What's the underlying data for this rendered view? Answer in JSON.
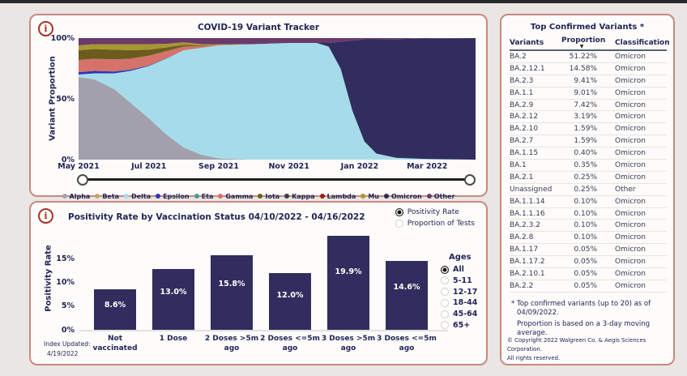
{
  "page": {
    "background": "#e9e6e3",
    "topbar_color": "#2a2a2a"
  },
  "colors": {
    "panel_border": "#c8897e",
    "panel_bg": "#fdfcfb",
    "text_navy": "#232456",
    "info_icon": "#a93226",
    "bar": "#312d5e"
  },
  "variant_panel": {
    "info_icon_glyph": "i",
    "title": "COVID-19 Variant Tracker"
  },
  "positivity_panel": {
    "info_icon_glyph": "i",
    "title": "Positivity Rate by Vaccination Status 04/10/2022 - 04/16/2022",
    "view_options": {
      "options": [
        "Positivity Rate",
        "Proportion of Tests"
      ],
      "selected": 0
    },
    "ages": {
      "label": "Ages",
      "options": [
        "All",
        "5-11",
        "12-17",
        "18-44",
        "45-64",
        "65+"
      ],
      "selected": 0
    },
    "index_updated": {
      "label": "Index Updated:",
      "date": "4/19/2022"
    }
  },
  "chart_data": [
    {
      "type": "area",
      "title": "COVID-19 Variant Tracker",
      "ylabel": "Variant Proportion",
      "ylim": [
        0,
        100
      ],
      "stacked": true,
      "grid": false,
      "legend_position": "bottom",
      "yticks": [
        {
          "label": "0%",
          "value": 0
        },
        {
          "label": "50%",
          "value": 50
        },
        {
          "label": "100%",
          "value": 100
        }
      ],
      "xticks": [
        {
          "label": "May 2021",
          "pos": 0.0
        },
        {
          "label": "Jul 2021",
          "pos": 0.177
        },
        {
          "label": "Sep 2021",
          "pos": 0.353
        },
        {
          "label": "Nov 2021",
          "pos": 0.53
        },
        {
          "label": "Jan 2022",
          "pos": 0.708
        },
        {
          "label": "Mar 2022",
          "pos": 0.878
        }
      ],
      "x": [
        0,
        0.04,
        0.09,
        0.13,
        0.177,
        0.22,
        0.265,
        0.31,
        0.354,
        0.44,
        0.53,
        0.6,
        0.63,
        0.66,
        0.69,
        0.72,
        0.75,
        0.8,
        0.885,
        1.0
      ],
      "series": [
        {
          "name": "Alpha",
          "color": "#a3a0ae",
          "values": [
            68,
            66,
            58,
            47,
            34,
            21,
            10,
            4,
            1,
            0,
            0,
            0,
            0,
            0,
            0,
            0,
            0,
            0,
            0,
            0
          ]
        },
        {
          "name": "Delta",
          "color": "#a6dcea",
          "values": [
            2,
            5,
            13,
            26,
            43,
            62,
            80,
            88,
            93,
            95,
            96,
            96,
            93,
            75,
            40,
            15,
            5,
            1.5,
            0.5,
            0
          ]
        },
        {
          "name": "Epsilon",
          "color": "#2b35b4",
          "values": [
            2,
            2,
            1.5,
            1,
            0.5,
            0.3,
            0,
            0,
            0,
            0,
            0,
            0,
            0,
            0,
            0,
            0,
            0,
            0,
            0,
            0
          ]
        },
        {
          "name": "Gamma",
          "color": "#d5736a",
          "values": [
            10,
            10,
            10,
            9,
            8,
            6,
            3,
            1.5,
            0.5,
            0,
            0,
            0,
            0,
            0,
            0,
            0,
            0,
            0,
            0,
            0
          ]
        },
        {
          "name": "Iota",
          "color": "#6b5c1e",
          "values": [
            8,
            8,
            8,
            7,
            5,
            3,
            1.5,
            0.5,
            0,
            0,
            0,
            0,
            0,
            0,
            0,
            0,
            0,
            0,
            0,
            0
          ]
        },
        {
          "name": "Mu",
          "color": "#a79732",
          "values": [
            4,
            4,
            4.5,
            5,
            4.5,
            3,
            2,
            1,
            0.5,
            0,
            0,
            0,
            0,
            0,
            0,
            0,
            0,
            0,
            0,
            0
          ]
        },
        {
          "name": "Beta",
          "color": "#c0ab62",
          "values": [
            0,
            0,
            0,
            0,
            0,
            0,
            0,
            0,
            0,
            0,
            0,
            0,
            0,
            0,
            0,
            0,
            0,
            0,
            0,
            0
          ]
        },
        {
          "name": "Eta",
          "color": "#44a08e",
          "values": [
            0,
            0,
            0,
            0,
            0,
            0,
            0,
            0,
            0,
            0,
            0,
            0,
            0,
            0,
            0,
            0,
            0,
            0,
            0,
            0
          ]
        },
        {
          "name": "Kappa",
          "color": "#3b3b41",
          "values": [
            0,
            0,
            0,
            0,
            0,
            0,
            0,
            0,
            0,
            0,
            0,
            0,
            0,
            0,
            0,
            0,
            0,
            0,
            0,
            0
          ]
        },
        {
          "name": "Lambda",
          "color": "#9c1f1a",
          "values": [
            0,
            0,
            0,
            0,
            0,
            0,
            0,
            0,
            0,
            0,
            0,
            0,
            0,
            0,
            0,
            0,
            0,
            0,
            0,
            0
          ]
        },
        {
          "name": "Omicron",
          "color": "#312d5e",
          "values": [
            0,
            0,
            0,
            0,
            0,
            0,
            0,
            0,
            0,
            0,
            0,
            0,
            3,
            22,
            58,
            84,
            94,
            97.7,
            99.2,
            100
          ]
        },
        {
          "name": "Other",
          "color": "#6a3a6c",
          "values": [
            6,
            5,
            5,
            5,
            5,
            4.7,
            3.5,
            5,
            5,
            5,
            4,
            4,
            4,
            3,
            2,
            1,
            1,
            0.8,
            0.3,
            0
          ]
        }
      ],
      "legend": [
        {
          "label": "Alpha",
          "color": "#a3a0ae"
        },
        {
          "label": "Beta",
          "color": "#c0ab62"
        },
        {
          "label": "Delta",
          "color": "#a6dcea"
        },
        {
          "label": "Epsilon",
          "color": "#2b35b4"
        },
        {
          "label": "Eta",
          "color": "#44a08e"
        },
        {
          "label": "Gamma",
          "color": "#d5736a"
        },
        {
          "label": "Iota",
          "color": "#6b5c1e"
        },
        {
          "label": "Kappa",
          "color": "#3b3b41"
        },
        {
          "label": "Lambda",
          "color": "#9c1f1a"
        },
        {
          "label": "Mu",
          "color": "#a79732"
        },
        {
          "label": "Omicron",
          "color": "#2b2850"
        },
        {
          "label": "Other",
          "color": "#6a3a6c"
        }
      ]
    },
    {
      "type": "bar",
      "title": "Positivity Rate by Vaccination Status 04/10/2022 - 04/16/2022",
      "ylabel": "Positivity Rate",
      "categories": [
        "Not vaccinated",
        "1 Dose",
        "2 Doses >5m ago",
        "2 Doses <=5m ago",
        "3 Doses >5m ago",
        "3 Doses <=5m ago"
      ],
      "values": [
        8.6,
        13.0,
        15.8,
        12.0,
        19.9,
        14.6
      ],
      "labels": [
        "8.6%",
        "13.0%",
        "15.8%",
        "12.0%",
        "19.9%",
        "14.6%"
      ],
      "ylim": [
        0,
        21
      ],
      "yticks": [
        {
          "label": "0%",
          "value": 0
        },
        {
          "label": "5%",
          "value": 5
        },
        {
          "label": "10%",
          "value": 10
        },
        {
          "label": "15%",
          "value": 15
        }
      ],
      "bar_color": "#312d5e",
      "grid": false
    }
  ],
  "variants_table": {
    "title": "Top Confirmed Variants *",
    "columns": [
      "Variants",
      "Proportion",
      "Classification"
    ],
    "sort": {
      "column": "Proportion",
      "direction": "desc",
      "icon": "▼"
    },
    "rows": [
      [
        "BA.2",
        "51.22%",
        "Omicron"
      ],
      [
        "BA.2.12.1",
        "14.58%",
        "Omicron"
      ],
      [
        "BA.2.3",
        "9.41%",
        "Omicron"
      ],
      [
        "BA.1.1",
        "9.01%",
        "Omicron"
      ],
      [
        "BA.2.9",
        "7.42%",
        "Omicron"
      ],
      [
        "BA.2.12",
        "3.19%",
        "Omicron"
      ],
      [
        "BA.2.10",
        "1.59%",
        "Omicron"
      ],
      [
        "BA.2.7",
        "1.59%",
        "Omicron"
      ],
      [
        "BA.1.15",
        "0.40%",
        "Omicron"
      ],
      [
        "BA.1",
        "0.35%",
        "Omicron"
      ],
      [
        "BA.2.1",
        "0.25%",
        "Omicron"
      ],
      [
        "Unassigned",
        "0.25%",
        "Other"
      ],
      [
        "BA.1.1.14",
        "0.10%",
        "Omicron"
      ],
      [
        "BA.1.1.16",
        "0.10%",
        "Omicron"
      ],
      [
        "BA.2.3.2",
        "0.10%",
        "Omicron"
      ],
      [
        "BA.2.8",
        "0.10%",
        "Omicron"
      ],
      [
        "BA.1.17",
        "0.05%",
        "Omicron"
      ],
      [
        "BA.1.17.2",
        "0.05%",
        "Omicron"
      ],
      [
        "BA.2.10.1",
        "0.05%",
        "Omicron"
      ],
      [
        "BA.2.2",
        "0.05%",
        "Omicron"
      ]
    ],
    "footnotes": [
      "* Top confirmed variants (up to 20) as of 04/09/2022.",
      "Proportion is based on a 3-day moving average."
    ],
    "copyright": {
      "line1": "© Copyright 2022 Walgreen Co. & Aegis Sciences Corporation.",
      "line2": "All rights reserved."
    }
  }
}
